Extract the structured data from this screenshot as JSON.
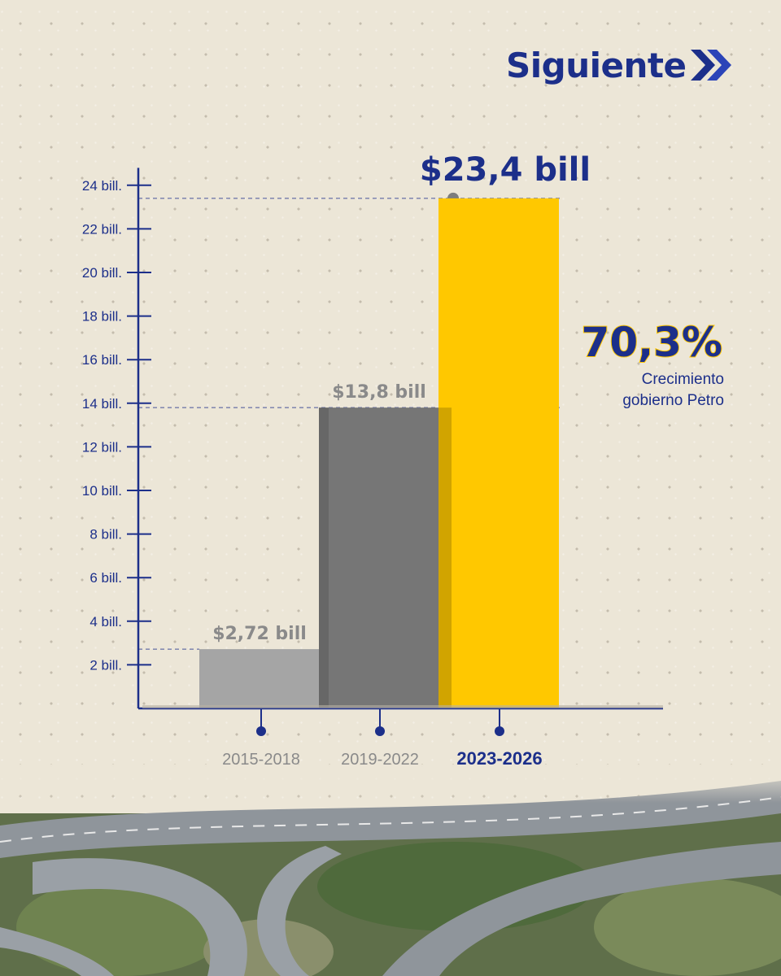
{
  "header": {
    "brand": "Siguiente",
    "brand_icon": "double-chevron-right-icon"
  },
  "colors": {
    "axis": "#1c2f8a",
    "title_blue": "#1c2f8a",
    "bar_1": "#a5a5a5",
    "bar_2": "#767676",
    "bar_3": "#ffc800",
    "label_gray": "#8a8a8a"
  },
  "chart_data": {
    "type": "bar",
    "categories": [
      "2015-2018",
      "2019-2022",
      "2023-2026"
    ],
    "values": [
      2.72,
      13.8,
      23.4
    ],
    "value_labels": [
      "$2,72 bill",
      "$13,8 bill",
      "$23,4 bill"
    ],
    "highlight_category": "2023-2026",
    "yticks": [
      2,
      4,
      6,
      8,
      10,
      12,
      14,
      16,
      18,
      20,
      22,
      24
    ],
    "ytick_labels": [
      "2 bill.",
      "4 bill.",
      "6 bill.",
      "8 bill.",
      "10 bill.",
      "12 bill.",
      "14 bill.",
      "16 bill.",
      "18 bill.",
      "20 bill.",
      "22 bill.",
      "24 bill."
    ],
    "ylim": [
      0,
      24
    ],
    "grid": false,
    "xlabel": "",
    "ylabel": ""
  },
  "callout": {
    "percent": "70,3%",
    "line1": "Crecimiento",
    "line2": "gobierno Petro"
  }
}
